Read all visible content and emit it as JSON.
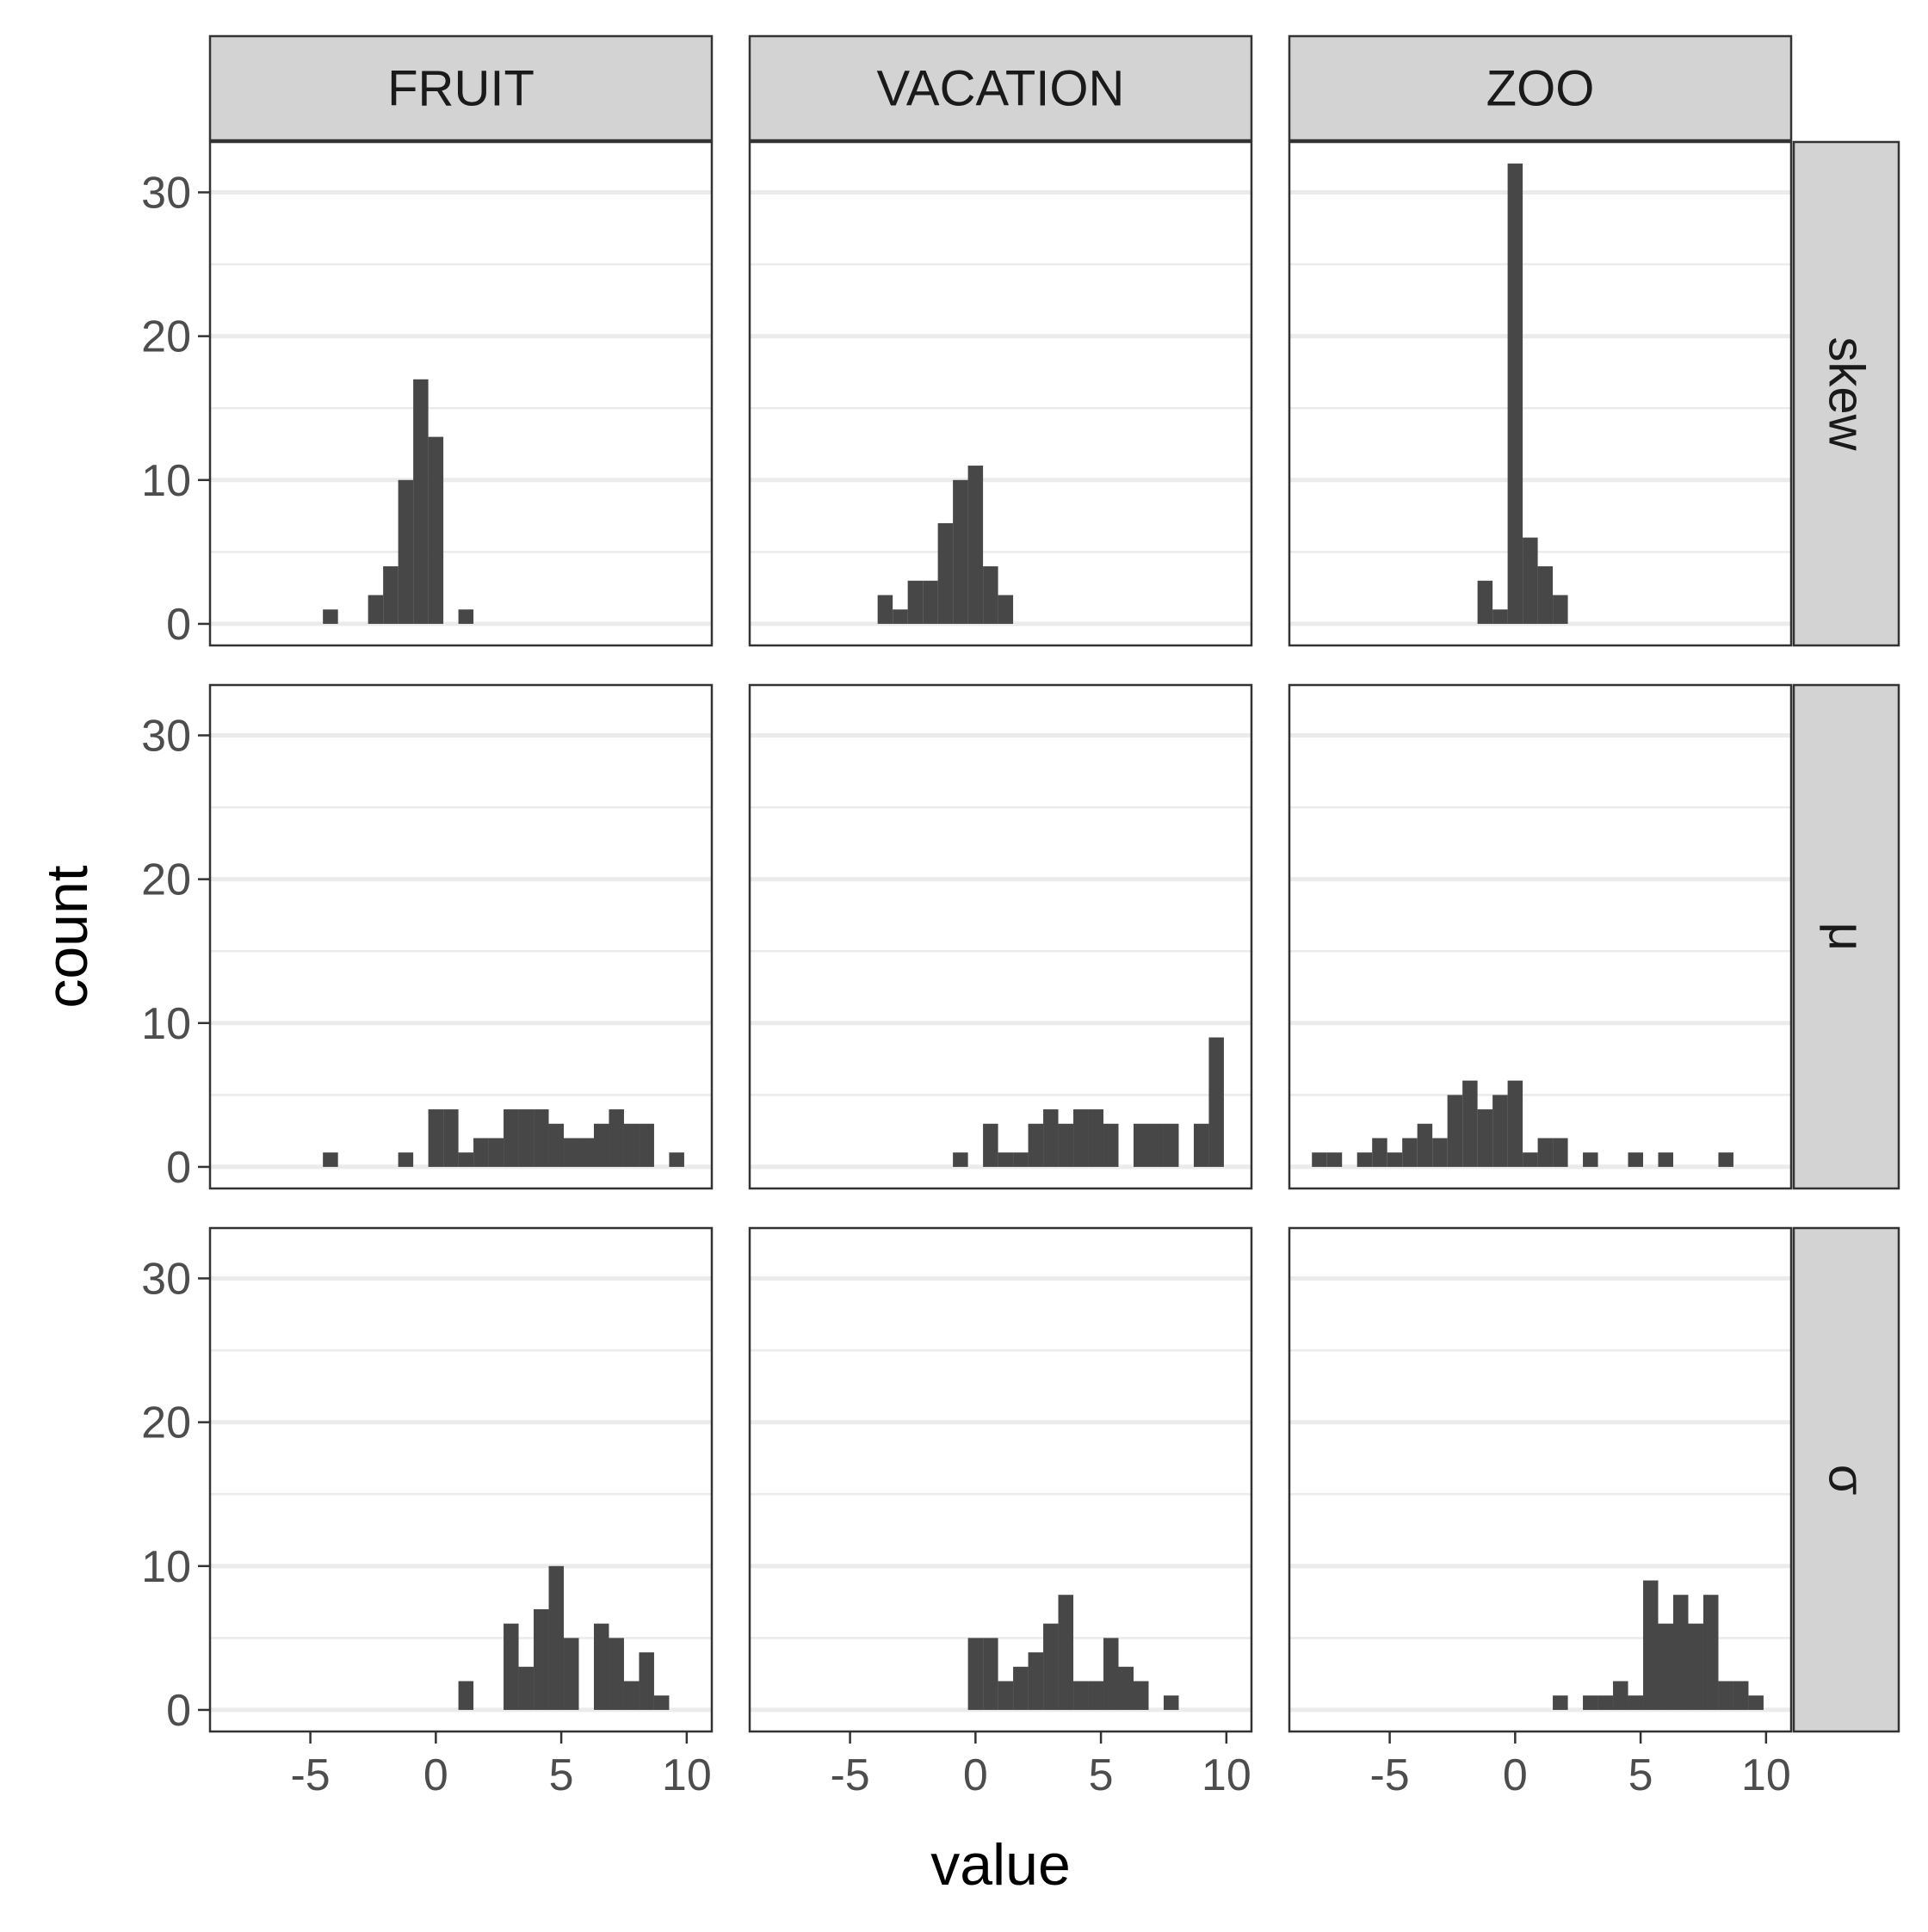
{
  "chart_data": {
    "type": "bar",
    "facet_columns": [
      "FRUIT",
      "VACATION",
      "ZOO"
    ],
    "facet_rows": [
      "skew",
      "μ",
      "σ"
    ],
    "xlabel": "value",
    "ylabel": "count",
    "xlim": [
      -9,
      11
    ],
    "ylim": [
      -1.5,
      33.5
    ],
    "x_ticks": [
      -5,
      0,
      5,
      10
    ],
    "y_ticks": [
      0,
      10,
      20,
      30
    ],
    "y_minor_ticks": [
      5,
      15,
      25
    ],
    "grid": "horizontal",
    "bin_width": 0.6,
    "bar_color": "#474747",
    "panels": [
      {
        "col": "FRUIT",
        "row": "skew",
        "bins": [
          {
            "x": -4.2,
            "count": 1
          },
          {
            "x": -2.4,
            "count": 2
          },
          {
            "x": -1.8,
            "count": 4
          },
          {
            "x": -1.2,
            "count": 10
          },
          {
            "x": -0.6,
            "count": 17
          },
          {
            "x": 0.0,
            "count": 13
          },
          {
            "x": 1.2,
            "count": 1
          }
        ]
      },
      {
        "col": "VACATION",
        "row": "skew",
        "bins": [
          {
            "x": -3.6,
            "count": 2
          },
          {
            "x": -3.0,
            "count": 1
          },
          {
            "x": -2.4,
            "count": 3
          },
          {
            "x": -1.8,
            "count": 3
          },
          {
            "x": -1.2,
            "count": 7
          },
          {
            "x": -0.6,
            "count": 10
          },
          {
            "x": 0.0,
            "count": 11
          },
          {
            "x": 0.6,
            "count": 4
          },
          {
            "x": 1.2,
            "count": 2
          }
        ]
      },
      {
        "col": "ZOO",
        "row": "skew",
        "bins": [
          {
            "x": -1.2,
            "count": 3
          },
          {
            "x": -0.6,
            "count": 1
          },
          {
            "x": 0.0,
            "count": 32
          },
          {
            "x": 0.6,
            "count": 6
          },
          {
            "x": 1.2,
            "count": 4
          },
          {
            "x": 1.8,
            "count": 2
          }
        ]
      },
      {
        "col": "FRUIT",
        "row": "μ",
        "bins": [
          {
            "x": -4.2,
            "count": 1
          },
          {
            "x": -1.2,
            "count": 1
          },
          {
            "x": 0.0,
            "count": 4
          },
          {
            "x": 0.6,
            "count": 4
          },
          {
            "x": 1.2,
            "count": 1
          },
          {
            "x": 1.8,
            "count": 2
          },
          {
            "x": 2.4,
            "count": 2
          },
          {
            "x": 3.0,
            "count": 4
          },
          {
            "x": 3.6,
            "count": 4
          },
          {
            "x": 4.2,
            "count": 4
          },
          {
            "x": 4.8,
            "count": 3
          },
          {
            "x": 5.4,
            "count": 2
          },
          {
            "x": 6.0,
            "count": 2
          },
          {
            "x": 6.6,
            "count": 3
          },
          {
            "x": 7.2,
            "count": 4
          },
          {
            "x": 7.8,
            "count": 3
          },
          {
            "x": 8.4,
            "count": 3
          },
          {
            "x": 9.6,
            "count": 1
          }
        ]
      },
      {
        "col": "VACATION",
        "row": "μ",
        "bins": [
          {
            "x": -0.6,
            "count": 1
          },
          {
            "x": 0.6,
            "count": 3
          },
          {
            "x": 1.2,
            "count": 1
          },
          {
            "x": 1.8,
            "count": 1
          },
          {
            "x": 2.4,
            "count": 3
          },
          {
            "x": 3.0,
            "count": 4
          },
          {
            "x": 3.6,
            "count": 3
          },
          {
            "x": 4.2,
            "count": 4
          },
          {
            "x": 4.8,
            "count": 4
          },
          {
            "x": 5.4,
            "count": 3
          },
          {
            "x": 6.6,
            "count": 3
          },
          {
            "x": 7.2,
            "count": 3
          },
          {
            "x": 7.8,
            "count": 3
          },
          {
            "x": 9.0,
            "count": 3
          },
          {
            "x": 9.6,
            "count": 9
          }
        ]
      },
      {
        "col": "ZOO",
        "row": "μ",
        "bins": [
          {
            "x": -7.8,
            "count": 1
          },
          {
            "x": -7.2,
            "count": 1
          },
          {
            "x": -6.0,
            "count": 1
          },
          {
            "x": -5.4,
            "count": 2
          },
          {
            "x": -4.8,
            "count": 1
          },
          {
            "x": -4.2,
            "count": 2
          },
          {
            "x": -3.6,
            "count": 3
          },
          {
            "x": -3.0,
            "count": 2
          },
          {
            "x": -2.4,
            "count": 5
          },
          {
            "x": -1.8,
            "count": 6
          },
          {
            "x": -1.2,
            "count": 4
          },
          {
            "x": -0.6,
            "count": 5
          },
          {
            "x": 0.0,
            "count": 6
          },
          {
            "x": 0.6,
            "count": 1
          },
          {
            "x": 1.2,
            "count": 2
          },
          {
            "x": 1.8,
            "count": 2
          },
          {
            "x": 3.0,
            "count": 1
          },
          {
            "x": 4.8,
            "count": 1
          },
          {
            "x": 6.0,
            "count": 1
          },
          {
            "x": 8.4,
            "count": 1
          }
        ]
      },
      {
        "col": "FRUIT",
        "row": "σ",
        "bins": [
          {
            "x": 1.2,
            "count": 2
          },
          {
            "x": 3.0,
            "count": 6
          },
          {
            "x": 3.6,
            "count": 3
          },
          {
            "x": 4.2,
            "count": 7
          },
          {
            "x": 4.8,
            "count": 10
          },
          {
            "x": 5.4,
            "count": 5
          },
          {
            "x": 6.6,
            "count": 6
          },
          {
            "x": 7.2,
            "count": 5
          },
          {
            "x": 7.8,
            "count": 2
          },
          {
            "x": 8.4,
            "count": 4
          },
          {
            "x": 9.0,
            "count": 1
          }
        ]
      },
      {
        "col": "VACATION",
        "row": "σ",
        "bins": [
          {
            "x": 0.0,
            "count": 5
          },
          {
            "x": 0.6,
            "count": 5
          },
          {
            "x": 1.2,
            "count": 2
          },
          {
            "x": 1.8,
            "count": 3
          },
          {
            "x": 2.4,
            "count": 4
          },
          {
            "x": 3.0,
            "count": 6
          },
          {
            "x": 3.6,
            "count": 8
          },
          {
            "x": 4.2,
            "count": 2
          },
          {
            "x": 4.8,
            "count": 2
          },
          {
            "x": 5.4,
            "count": 5
          },
          {
            "x": 6.0,
            "count": 3
          },
          {
            "x": 6.6,
            "count": 2
          },
          {
            "x": 7.8,
            "count": 1
          }
        ]
      },
      {
        "col": "ZOO",
        "row": "σ",
        "bins": [
          {
            "x": 1.8,
            "count": 1
          },
          {
            "x": 3.0,
            "count": 1
          },
          {
            "x": 3.6,
            "count": 1
          },
          {
            "x": 4.2,
            "count": 2
          },
          {
            "x": 4.8,
            "count": 1
          },
          {
            "x": 5.4,
            "count": 9
          },
          {
            "x": 6.0,
            "count": 6
          },
          {
            "x": 6.6,
            "count": 8
          },
          {
            "x": 7.2,
            "count": 6
          },
          {
            "x": 7.8,
            "count": 8
          },
          {
            "x": 8.4,
            "count": 2
          },
          {
            "x": 9.0,
            "count": 2
          },
          {
            "x": 9.6,
            "count": 1
          }
        ]
      }
    ]
  }
}
